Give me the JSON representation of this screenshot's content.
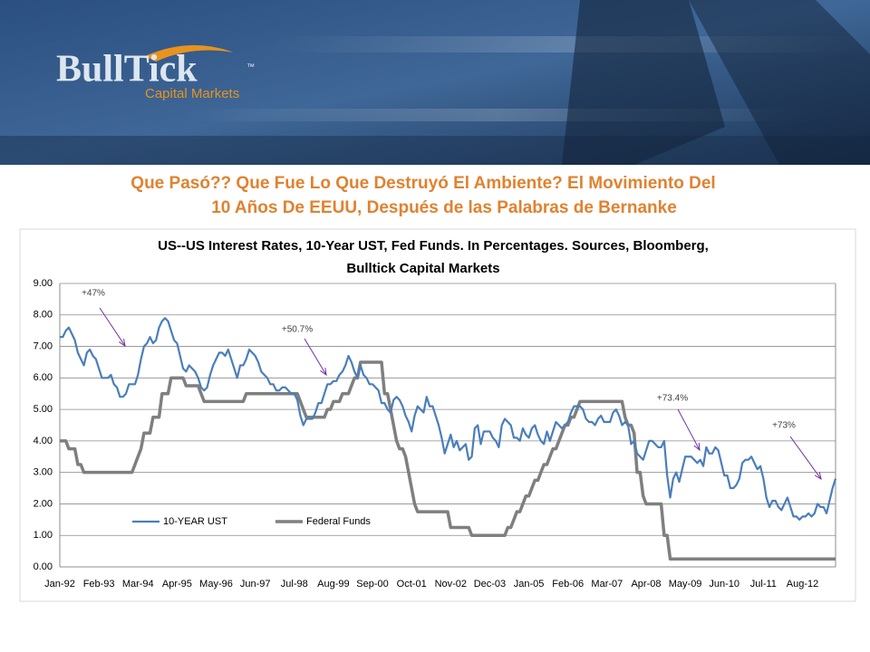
{
  "logo": {
    "name": "BullTick",
    "tm": "™",
    "subtitle": "Capital Markets"
  },
  "slide_title": [
    "Que Pasó?? Que Fue Lo Que Destruyó El Ambiente? El Movimiento Del",
    "10 Años De EEUU, Después de las Palabras de Bernanke"
  ],
  "chart_data": {
    "type": "line",
    "title": [
      "US--US Interest Rates, 10-Year UST, Fed Funds. In Percentages. Sources, Bloomberg,",
      "Bulltick Capital Markets"
    ],
    "annotations": [
      "+47%",
      "+50.7%",
      "+73.4%",
      "+73%"
    ],
    "categories": [
      "Jan-92",
      null,
      null,
      null,
      null,
      null,
      null,
      null,
      null,
      null,
      null,
      null,
      null,
      "Feb-93",
      null,
      null,
      null,
      null,
      null,
      null,
      null,
      null,
      null,
      null,
      null,
      null,
      "Mar-94",
      null,
      null,
      null,
      null,
      null,
      null,
      null,
      null,
      null,
      null,
      null,
      null,
      "Apr-95",
      null,
      null,
      null,
      null,
      null,
      null,
      null,
      null,
      null,
      null,
      null,
      null,
      "May-96",
      null,
      null,
      null,
      null,
      null,
      null,
      null,
      null,
      null,
      null,
      null,
      null,
      "Jun-97",
      null,
      null,
      null,
      null,
      null,
      null,
      null,
      null,
      null,
      null,
      null,
      null,
      "Jul-98",
      null,
      null,
      null,
      null,
      null,
      null,
      null,
      null,
      null,
      null,
      null,
      null,
      "Aug-99",
      null,
      null,
      null,
      null,
      null,
      null,
      null,
      null,
      null,
      null,
      null,
      null,
      "Sep-00",
      null,
      null,
      null,
      null,
      null,
      null,
      null,
      null,
      null,
      null,
      null,
      null,
      "Oct-01",
      null,
      null,
      null,
      null,
      null,
      null,
      null,
      null,
      null,
      null,
      null,
      null,
      "Nov-02",
      null,
      null,
      null,
      null,
      null,
      null,
      null,
      null,
      null,
      null,
      null,
      null,
      "Dec-03",
      null,
      null,
      null,
      null,
      null,
      null,
      null,
      null,
      null,
      null,
      null,
      null,
      "Jan-05",
      null,
      null,
      null,
      null,
      null,
      null,
      null,
      null,
      null,
      null,
      null,
      null,
      "Feb-06",
      null,
      null,
      null,
      null,
      null,
      null,
      null,
      null,
      null,
      null,
      null,
      null,
      "Mar-07",
      null,
      null,
      null,
      null,
      null,
      null,
      null,
      null,
      null,
      null,
      null,
      null,
      "Apr-08",
      null,
      null,
      null,
      null,
      null,
      null,
      null,
      null,
      null,
      null,
      null,
      null,
      "May-09",
      null,
      null,
      null,
      null,
      null,
      null,
      null,
      null,
      null,
      null,
      null,
      null,
      "Jun-10",
      null,
      null,
      null,
      null,
      null,
      null,
      null,
      null,
      null,
      null,
      null,
      null,
      "Jul-11",
      null,
      null,
      null,
      null,
      null,
      null,
      null,
      null,
      null,
      null,
      null,
      null,
      "Aug-12",
      null,
      null,
      null,
      null,
      null,
      null,
      null,
      null,
      null,
      null,
      null
    ],
    "series": [
      {
        "name": "10-YEAR UST",
        "color": "#4a7ebb",
        "values": [
          7.3,
          7.3,
          7.5,
          7.6,
          7.4,
          7.2,
          6.8,
          6.6,
          6.4,
          6.8,
          6.9,
          6.7,
          6.6,
          6.3,
          6.0,
          6.0,
          6.0,
          6.1,
          5.8,
          5.7,
          5.4,
          5.4,
          5.5,
          5.8,
          5.8,
          5.8,
          6.1,
          6.6,
          7.0,
          7.1,
          7.3,
          7.1,
          7.2,
          7.6,
          7.8,
          7.9,
          7.8,
          7.5,
          7.2,
          7.1,
          6.7,
          6.3,
          6.2,
          6.4,
          6.3,
          6.2,
          6.0,
          5.7,
          5.6,
          5.7,
          6.1,
          6.4,
          6.6,
          6.8,
          6.8,
          6.7,
          6.9,
          6.6,
          6.3,
          6.0,
          6.4,
          6.4,
          6.6,
          6.9,
          6.8,
          6.7,
          6.5,
          6.2,
          6.1,
          6.0,
          5.8,
          5.8,
          5.6,
          5.6,
          5.7,
          5.7,
          5.6,
          5.5,
          5.5,
          5.3,
          4.8,
          4.5,
          4.7,
          4.7,
          4.7,
          4.9,
          5.2,
          5.2,
          5.5,
          5.8,
          5.8,
          5.9,
          5.9,
          6.1,
          6.2,
          6.4,
          6.7,
          6.5,
          6.2,
          6.0,
          6.4,
          6.1,
          6.0,
          5.8,
          5.8,
          5.7,
          5.6,
          5.2,
          5.2,
          5.0,
          4.9,
          5.3,
          5.4,
          5.3,
          5.1,
          4.8,
          4.6,
          4.3,
          4.8,
          5.1,
          5.0,
          4.9,
          5.4,
          5.1,
          5.1,
          4.8,
          4.5,
          4.1,
          3.6,
          3.9,
          4.2,
          3.8,
          4.0,
          3.7,
          3.8,
          3.9,
          3.4,
          3.5,
          4.4,
          4.5,
          3.9,
          4.3,
          4.3,
          4.3,
          4.1,
          4.0,
          3.8,
          4.5,
          4.7,
          4.6,
          4.5,
          4.1,
          4.1,
          4.0,
          4.4,
          4.2,
          4.1,
          4.4,
          4.5,
          4.2,
          4.0,
          3.9,
          4.3,
          4.0,
          4.3,
          4.6,
          4.5,
          4.4,
          4.5,
          4.6,
          4.9,
          5.1,
          5.1,
          5.1,
          5.0,
          4.7,
          4.6,
          4.6,
          4.5,
          4.7,
          4.8,
          4.6,
          4.6,
          4.6,
          4.9,
          5.0,
          4.8,
          4.5,
          4.6,
          4.5,
          3.9,
          4.0,
          3.6,
          3.5,
          3.4,
          3.7,
          4.0,
          4.0,
          3.9,
          3.8,
          3.8,
          4.0,
          2.9,
          2.2,
          2.8,
          3.0,
          2.7,
          3.1,
          3.5,
          3.5,
          3.5,
          3.4,
          3.3,
          3.4,
          3.2,
          3.8,
          3.6,
          3.6,
          3.8,
          3.7,
          3.3,
          2.9,
          2.9,
          2.5,
          2.5,
          2.6,
          2.8,
          3.3,
          3.4,
          3.4,
          3.5,
          3.3,
          3.1,
          3.2,
          2.8,
          2.2,
          1.9,
          2.1,
          2.1,
          1.9,
          1.8,
          2.0,
          2.2,
          1.9,
          1.6,
          1.6,
          1.5,
          1.6,
          1.6,
          1.7,
          1.6,
          1.7,
          2.0,
          1.9,
          1.9,
          1.7,
          2.1,
          2.5,
          2.8
        ]
      },
      {
        "name": "Federal Funds",
        "color": "#7f7f7f",
        "values": [
          4.0,
          4.0,
          4.0,
          3.75,
          3.75,
          3.75,
          3.25,
          3.25,
          3.0,
          3.0,
          3.0,
          3.0,
          3.0,
          3.0,
          3.0,
          3.0,
          3.0,
          3.0,
          3.0,
          3.0,
          3.0,
          3.0,
          3.0,
          3.0,
          3.0,
          3.25,
          3.5,
          3.75,
          4.25,
          4.25,
          4.25,
          4.75,
          4.75,
          4.75,
          5.5,
          5.5,
          5.5,
          6.0,
          6.0,
          6.0,
          6.0,
          6.0,
          5.75,
          5.75,
          5.75,
          5.75,
          5.75,
          5.5,
          5.25,
          5.25,
          5.25,
          5.25,
          5.25,
          5.25,
          5.25,
          5.25,
          5.25,
          5.25,
          5.25,
          5.25,
          5.25,
          5.25,
          5.5,
          5.5,
          5.5,
          5.5,
          5.5,
          5.5,
          5.5,
          5.5,
          5.5,
          5.5,
          5.5,
          5.5,
          5.5,
          5.5,
          5.5,
          5.5,
          5.5,
          5.5,
          5.25,
          5.0,
          4.75,
          4.75,
          4.75,
          4.75,
          4.75,
          4.75,
          4.75,
          5.0,
          5.0,
          5.25,
          5.25,
          5.25,
          5.5,
          5.5,
          5.5,
          5.75,
          6.0,
          6.0,
          6.5,
          6.5,
          6.5,
          6.5,
          6.5,
          6.5,
          6.5,
          6.5,
          5.5,
          5.5,
          5.0,
          4.5,
          4.0,
          3.75,
          3.75,
          3.5,
          3.0,
          2.5,
          2.0,
          1.75,
          1.75,
          1.75,
          1.75,
          1.75,
          1.75,
          1.75,
          1.75,
          1.75,
          1.75,
          1.75,
          1.25,
          1.25,
          1.25,
          1.25,
          1.25,
          1.25,
          1.25,
          1.0,
          1.0,
          1.0,
          1.0,
          1.0,
          1.0,
          1.0,
          1.0,
          1.0,
          1.0,
          1.0,
          1.0,
          1.25,
          1.25,
          1.5,
          1.75,
          1.75,
          2.0,
          2.25,
          2.25,
          2.5,
          2.75,
          2.75,
          3.0,
          3.25,
          3.25,
          3.5,
          3.75,
          3.75,
          4.0,
          4.25,
          4.5,
          4.5,
          4.75,
          4.75,
          5.0,
          5.25,
          5.25,
          5.25,
          5.25,
          5.25,
          5.25,
          5.25,
          5.25,
          5.25,
          5.25,
          5.25,
          5.25,
          5.25,
          5.25,
          5.25,
          4.75,
          4.5,
          4.5,
          4.25,
          3.0,
          3.0,
          2.25,
          2.0,
          2.0,
          2.0,
          2.0,
          2.0,
          2.0,
          1.0,
          1.0,
          0.25,
          0.25,
          0.25,
          0.25,
          0.25,
          0.25,
          0.25,
          0.25,
          0.25,
          0.25,
          0.25,
          0.25,
          0.25,
          0.25,
          0.25,
          0.25,
          0.25,
          0.25,
          0.25,
          0.25,
          0.25,
          0.25,
          0.25,
          0.25,
          0.25,
          0.25,
          0.25,
          0.25,
          0.25,
          0.25,
          0.25,
          0.25,
          0.25,
          0.25,
          0.25,
          0.25,
          0.25,
          0.25,
          0.25,
          0.25,
          0.25,
          0.25,
          0.25,
          0.25,
          0.25,
          0.25,
          0.25,
          0.25,
          0.25,
          0.25,
          0.25,
          0.25,
          0.25,
          0.25,
          0.25,
          0.25
        ]
      }
    ],
    "ylim": [
      0,
      9
    ],
    "yticks": [
      {
        "value": 0,
        "label": "0.00"
      },
      {
        "value": 1,
        "label": "1.00"
      },
      {
        "value": 2,
        "label": "2.00"
      },
      {
        "value": 3,
        "label": "3.00"
      },
      {
        "value": 4,
        "label": "4.00"
      },
      {
        "value": 5,
        "label": "5.00"
      },
      {
        "value": 6,
        "label": "6.00"
      },
      {
        "value": 7,
        "label": "7.00"
      },
      {
        "value": 8,
        "label": "8.00"
      },
      {
        "value": 9,
        "label": "9.00"
      }
    ],
    "grid": true,
    "legend": "bottom-left"
  }
}
